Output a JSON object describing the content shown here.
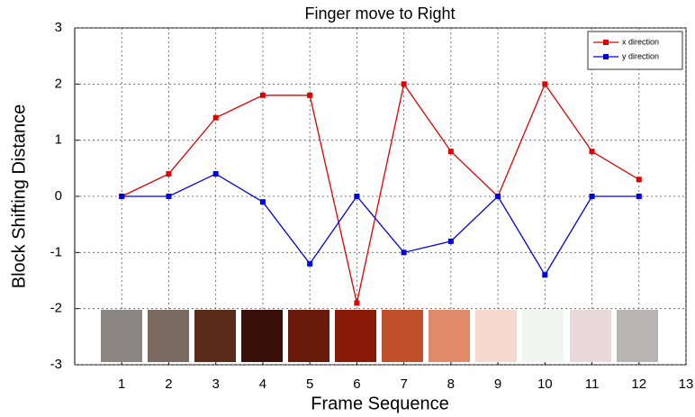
{
  "chart_data": {
    "type": "line",
    "title": "Finger move to Right",
    "x_label": "Frame Sequence",
    "y_label": "Block Shifting Distance",
    "x": [
      1,
      2,
      3,
      4,
      5,
      6,
      7,
      8,
      9,
      10,
      11,
      12
    ],
    "series": [
      {
        "name": "x direction",
        "color": "#e00000",
        "values": [
          0,
          0.4,
          1.4,
          1.8,
          1.8,
          -1.9,
          2.0,
          0.8,
          0,
          2.0,
          0.8,
          0.3
        ]
      },
      {
        "name": "y direction",
        "color": "#0000e0",
        "values": [
          0,
          0,
          0.4,
          -0.1,
          -1.2,
          0,
          -1.0,
          -0.8,
          0,
          -1.4,
          0,
          0
        ]
      }
    ],
    "xlim": [
      0,
      13
    ],
    "xticks": [
      1,
      2,
      3,
      4,
      5,
      6,
      7,
      8,
      9,
      10,
      11,
      12,
      13
    ],
    "ylim": [
      -3,
      3
    ],
    "yticks": [
      -3,
      -2,
      -1,
      0,
      1,
      2,
      3
    ],
    "grid": true,
    "legend": "upper right"
  }
}
